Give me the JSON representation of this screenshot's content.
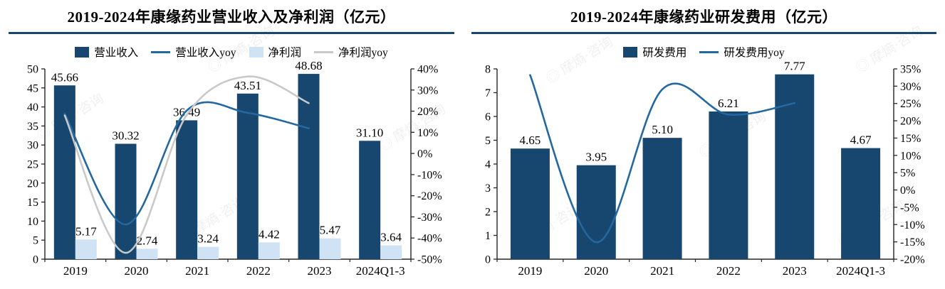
{
  "watermark": {
    "text": "◎ 摩熵·咨询"
  },
  "chart_data": [
    {
      "type": "bar",
      "title": "2019-2024年康缘药业营业收入及净利润（亿元）",
      "categories": [
        "2019",
        "2020",
        "2021",
        "2022",
        "2023",
        "2024Q1-3"
      ],
      "left_axis": {
        "min": 0,
        "max": 50,
        "step": 5,
        "suffix": ""
      },
      "right_axis": {
        "min": -50,
        "max": 40,
        "step": 10,
        "suffix": "%"
      },
      "grid": false,
      "legend_position": "top",
      "series": [
        {
          "id": "revenue",
          "name": "营业收入",
          "kind": "bar",
          "axis": "left",
          "color": "#17466E",
          "values": [
            45.66,
            30.32,
            36.49,
            43.51,
            48.68,
            31.1
          ]
        },
        {
          "id": "revenue-yoy",
          "name": "营业收入yoy",
          "kind": "line",
          "axis": "right",
          "color": "#2368A0",
          "values": [
            18.9,
            -33.6,
            20.3,
            19.2,
            11.9,
            null
          ]
        },
        {
          "id": "net-profit",
          "name": "净利润",
          "kind": "bar",
          "axis": "left",
          "color": "#CFE3F5",
          "values": [
            5.17,
            2.74,
            3.24,
            4.42,
            5.47,
            3.64
          ]
        },
        {
          "id": "net-profit-yoy",
          "name": "净利润yoy",
          "kind": "line",
          "axis": "right",
          "color": "#C9C9C9",
          "values": [
            18.0,
            -47.0,
            18.2,
            36.4,
            23.8,
            null
          ]
        }
      ]
    },
    {
      "type": "bar",
      "title": "2019-2024年康缘药业研发费用（亿元）",
      "categories": [
        "2019",
        "2020",
        "2021",
        "2022",
        "2023",
        "2024Q1-3"
      ],
      "left_axis": {
        "min": 0,
        "max": 8,
        "step": 1,
        "suffix": ""
      },
      "right_axis": {
        "min": -20,
        "max": 35,
        "step": 5,
        "suffix": "%"
      },
      "grid": false,
      "legend_position": "top",
      "series": [
        {
          "id": "rnd-expense",
          "name": "研发费用",
          "kind": "bar",
          "axis": "left",
          "color": "#17466E",
          "values": [
            4.65,
            3.95,
            5.1,
            6.21,
            7.77,
            4.67
          ]
        },
        {
          "id": "rnd-expense-yoy",
          "name": "研发费用yoy",
          "kind": "line",
          "axis": "right",
          "color": "#2368A0",
          "values": [
            33.2,
            -15.1,
            29.1,
            21.8,
            25.1,
            null
          ]
        }
      ]
    }
  ]
}
